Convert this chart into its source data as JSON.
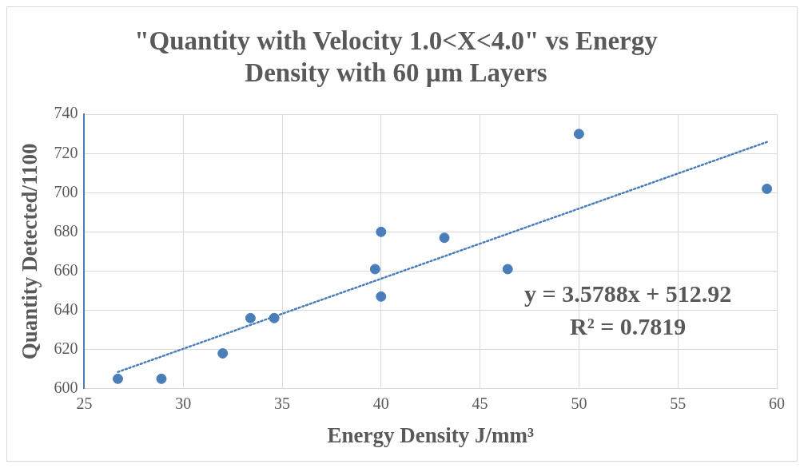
{
  "chart_data": {
    "type": "scatter",
    "title": "\"Quantity with Velocity 1.0<X<4.0\" vs Energy Density with 60 µm Layers",
    "xlabel": "Energy Density J/mm³",
    "ylabel": "Quantity Detected/1100",
    "xlim": [
      25,
      60
    ],
    "xticks": [
      25,
      30,
      35,
      40,
      45,
      50,
      55,
      60
    ],
    "ylim": [
      600,
      740
    ],
    "yticks": [
      600,
      620,
      640,
      660,
      680,
      700,
      720,
      740
    ],
    "grid": true,
    "legend": false,
    "marker": "circle",
    "series": [
      {
        "color": "#4a7ebb",
        "x": [
          26.7,
          28.9,
          32.0,
          33.4,
          34.6,
          39.7,
          40.0,
          40.0,
          43.2,
          46.4,
          50.0,
          59.5
        ],
        "values": [
          605,
          605,
          618,
          636,
          636,
          661,
          680,
          647,
          677,
          661,
          730,
          702
        ]
      },
      {
        "type": "line",
        "color": "#4a7ebb",
        "line_style": "dotted",
        "marker": "none",
        "x": [
          26.7,
          59.5
        ],
        "values": [
          608.5,
          725.9
        ]
      }
    ],
    "annotations": [
      "y = 3.5788x + 512.92",
      "R² = 0.7819"
    ]
  }
}
